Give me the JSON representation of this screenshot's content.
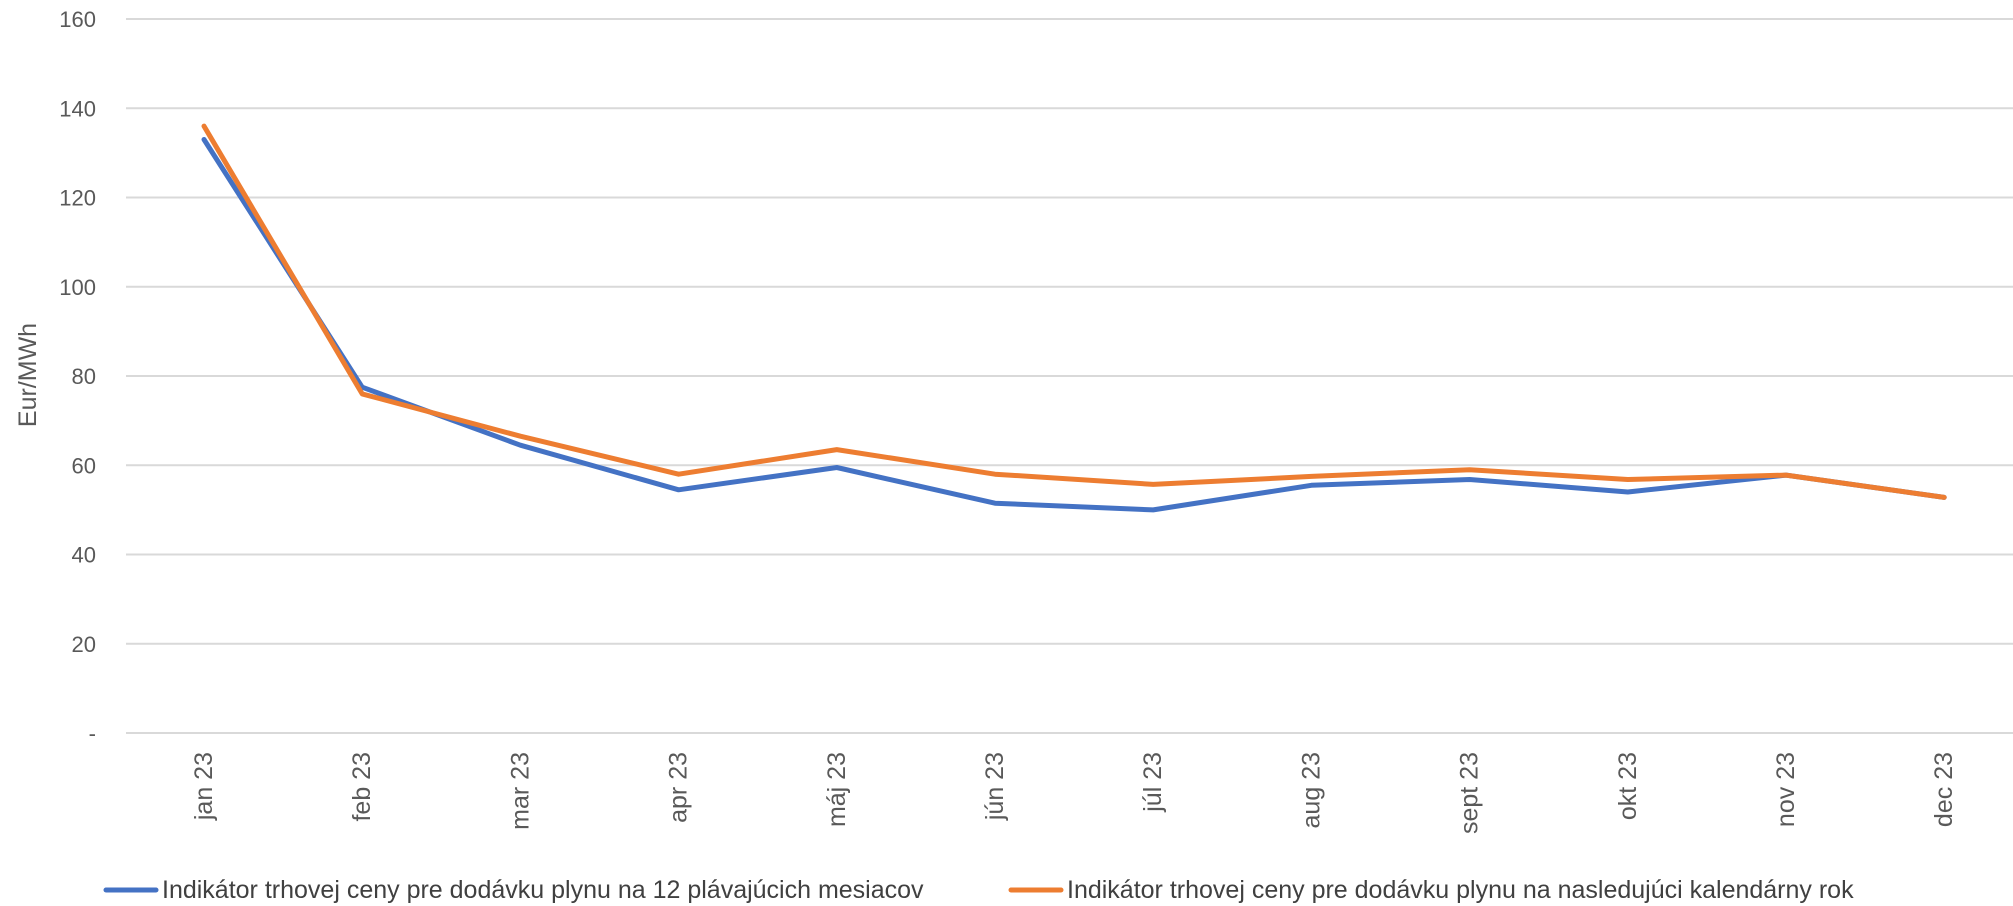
{
  "chart_data": {
    "type": "line",
    "categories": [
      "jan 23",
      "feb 23",
      "mar 23",
      "apr 23",
      "máj 23",
      "jún 23",
      "júl 23",
      "aug 23",
      "sept 23",
      "okt 23",
      "nov 23",
      "dec 23"
    ],
    "series": [
      {
        "name": "Indikátor trhovej ceny pre dodávku plynu na 12 plávajúcich mesiacov",
        "color": "#4472c4",
        "values": [
          133.0,
          77.5,
          64.5,
          54.5,
          59.5,
          51.5,
          50.0,
          55.5,
          56.8,
          54.0,
          57.8,
          52.8
        ]
      },
      {
        "name": "Indikátor trhovej ceny pre dodávku plynu na nasledujúci kalendárny rok",
        "color": "#ed7d31",
        "values": [
          136.0,
          76.0,
          66.5,
          58.0,
          63.5,
          58.0,
          55.7,
          57.5,
          59.0,
          56.8,
          57.8,
          52.8
        ]
      }
    ],
    "ylabel": "Eur/MWh",
    "xlabel": "",
    "ylim": [
      0,
      160
    ],
    "yticks": [
      {
        "value": 0,
        "label": "-"
      },
      {
        "value": 20,
        "label": "20"
      },
      {
        "value": 40,
        "label": "40"
      },
      {
        "value": 60,
        "label": "60"
      },
      {
        "value": 80,
        "label": "80"
      },
      {
        "value": 100,
        "label": "100"
      },
      {
        "value": 120,
        "label": "120"
      },
      {
        "value": 140,
        "label": "140"
      },
      {
        "value": 160,
        "label": "160"
      }
    ],
    "grid": true,
    "legend_position": "bottom"
  }
}
